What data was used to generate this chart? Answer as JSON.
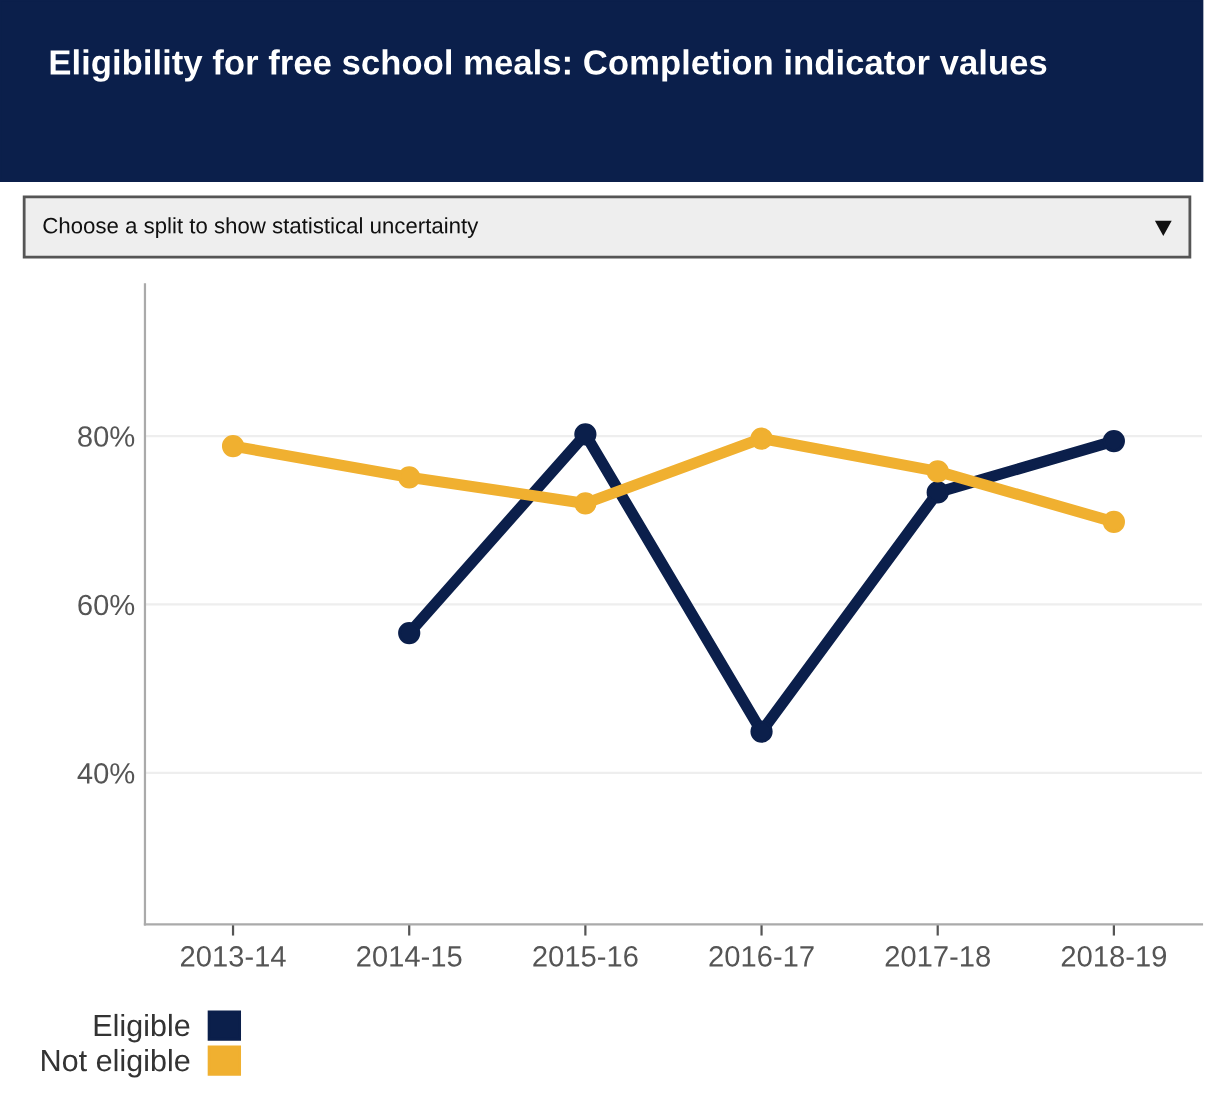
{
  "chart_data": {
    "type": "line",
    "title": "Eligibility for free school meals: Completion indicator values",
    "subtitle": "Choose a split to show statistical uncertainty",
    "categories": [
      "2013-14",
      "2014-15",
      "2015-16",
      "2016-17",
      "2017-18",
      "2018-19"
    ],
    "series": [
      {
        "name": "Eligible",
        "color": "#0b1f4b",
        "values": [
          null,
          56.6,
          80.2,
          44.9,
          73.3,
          79.4
        ]
      },
      {
        "name": "Not eligible",
        "color": "#f0b030",
        "values": [
          78.8,
          75.1,
          72.0,
          79.7,
          75.8,
          69.8
        ]
      }
    ],
    "ylim": [
      22,
      98
    ],
    "yticks": [
      {
        "value": 40,
        "label": "40%"
      },
      {
        "value": 60,
        "label": "60%"
      },
      {
        "value": 80,
        "label": "80%"
      }
    ],
    "grid": "y",
    "legend": "bottom left",
    "marker": "circle",
    "line_style": "solid"
  }
}
